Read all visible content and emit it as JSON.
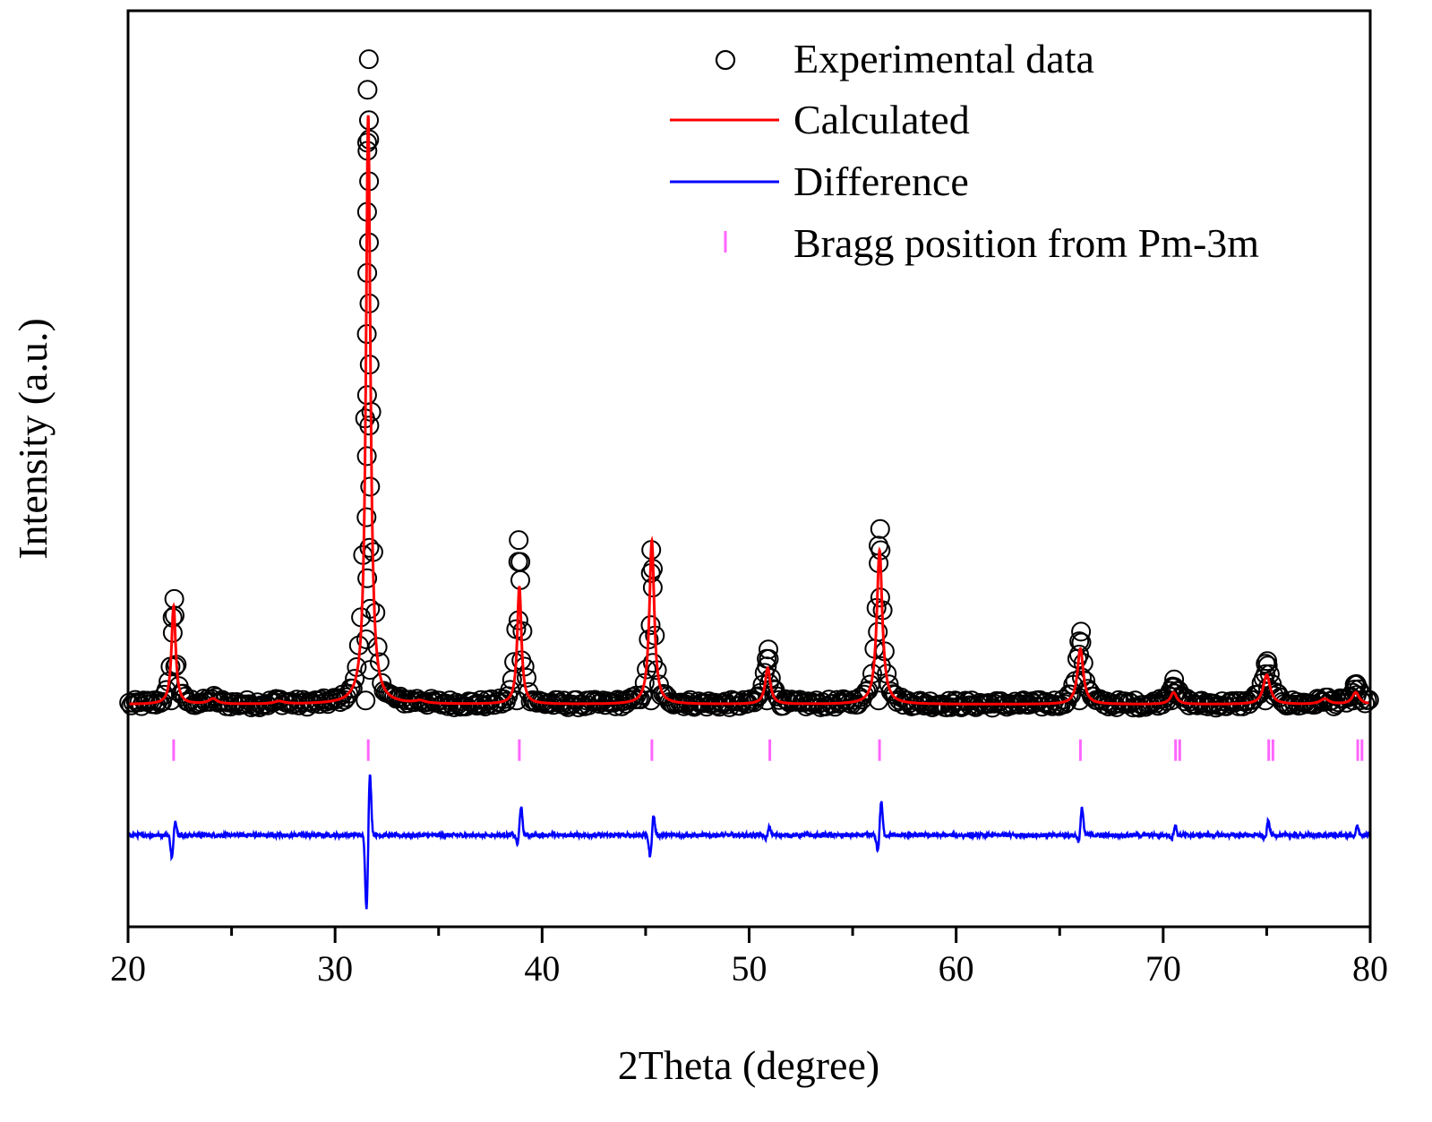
{
  "chart_data": {
    "type": "line",
    "title": "",
    "xlabel": "2Theta (degree)",
    "ylabel": "Intensity (a.u.)",
    "xlim": [
      20,
      80
    ],
    "ylim": [
      -0.34,
      1.06
    ],
    "x_ticks": [
      20,
      30,
      40,
      50,
      60,
      70,
      80
    ],
    "x_tick_labels": [
      "20",
      "30",
      "40",
      "50",
      "60",
      "70",
      "80"
    ],
    "y_tick_labels_shown": false,
    "legend_position": "top-right",
    "legend": [
      {
        "name": "Experimental data",
        "marker": "open-circle",
        "color": "#000000"
      },
      {
        "name": "Calculated",
        "marker": "line",
        "color": "#ff0000"
      },
      {
        "name": "Difference",
        "marker": "line",
        "color": "#0000ff"
      },
      {
        "name": "Bragg position from Pm-3m",
        "marker": "vertical-tick",
        "color": "#ff66ff"
      }
    ],
    "baseline": 0.0,
    "bragg_level": -0.07,
    "difference_offset": -0.2,
    "peaks": [
      {
        "pos": 22.2,
        "calc": 0.15,
        "obs": 0.155,
        "width": 0.12,
        "diff": 0.023,
        "diff_neg": -0.035
      },
      {
        "pos": 31.6,
        "calc": 0.9,
        "obs": 0.98,
        "width": 0.13,
        "diff": 0.095,
        "diff_neg": -0.115
      },
      {
        "pos": 38.9,
        "calc": 0.18,
        "obs": 0.245,
        "width": 0.12,
        "diff": 0.044,
        "diff_neg": -0.015
      },
      {
        "pos": 45.3,
        "calc": 0.25,
        "obs": 0.23,
        "width": 0.14,
        "diff": 0.03,
        "diff_neg": -0.033
      },
      {
        "pos": 50.9,
        "calc": 0.055,
        "obs": 0.078,
        "width": 0.15,
        "diff": 0.012,
        "diff_neg": -0.005
      },
      {
        "pos": 56.3,
        "calc": 0.235,
        "obs": 0.262,
        "width": 0.16,
        "diff": 0.052,
        "diff_neg": -0.025
      },
      {
        "pos": 66.0,
        "calc": 0.085,
        "obs": 0.105,
        "width": 0.17,
        "diff": 0.042,
        "diff_neg": -0.01
      },
      {
        "pos": 70.5,
        "calc": 0.018,
        "obs": 0.032,
        "width": 0.18,
        "diff": 0.015,
        "diff_neg": -0.004
      },
      {
        "pos": 75.0,
        "calc": 0.045,
        "obs": 0.06,
        "width": 0.2,
        "diff": 0.022,
        "diff_neg": -0.006
      },
      {
        "pos": 79.3,
        "calc": 0.018,
        "obs": 0.025,
        "width": 0.2,
        "diff": 0.015,
        "diff_neg": -0.004
      }
    ],
    "minor_peaks": [
      {
        "pos": 24.1,
        "calc": 0.008,
        "width": 0.25
      },
      {
        "pos": 27.3,
        "calc": 0.004,
        "width": 0.3
      },
      {
        "pos": 34.1,
        "calc": 0.004,
        "width": 0.3
      },
      {
        "pos": 77.8,
        "calc": 0.008,
        "width": 0.25
      }
    ],
    "bragg_positions": [
      22.2,
      31.6,
      38.9,
      45.3,
      51.0,
      56.3,
      66.0,
      70.6,
      70.8,
      75.1,
      75.3,
      79.4,
      79.6
    ]
  }
}
